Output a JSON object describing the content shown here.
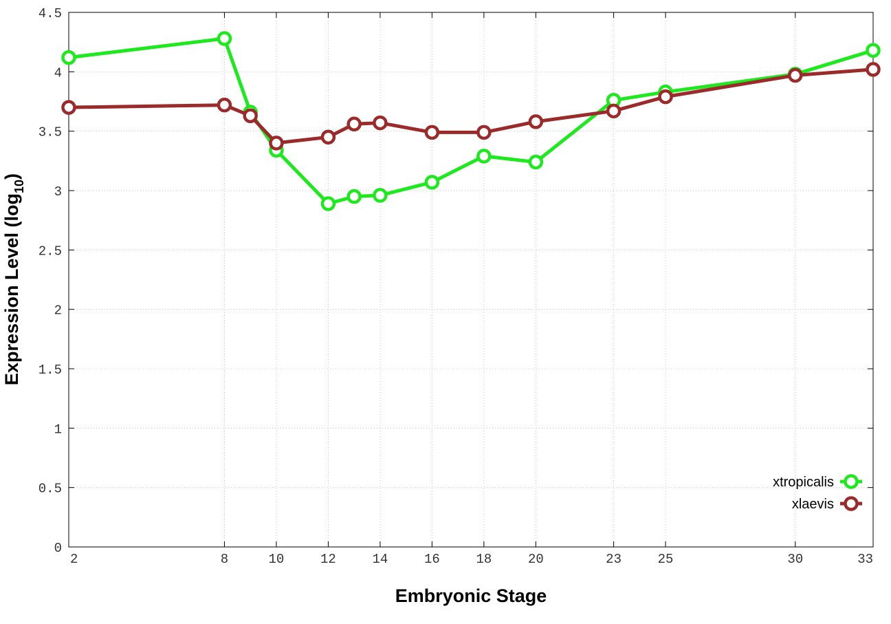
{
  "chart_data": {
    "type": "line",
    "xlabel": "Embryonic Stage",
    "ylabel_main": "Expression Level (log",
    "ylabel_sub": "10",
    "ylabel_close": ")",
    "xlim": [
      2,
      33
    ],
    "ylim": [
      0,
      4.5
    ],
    "x_ticks": [
      2,
      8,
      10,
      12,
      14,
      16,
      18,
      20,
      23,
      25,
      30,
      33
    ],
    "y_ticks": [
      0,
      0.5,
      1,
      1.5,
      2,
      2.5,
      3,
      3.5,
      4,
      4.5
    ],
    "y_tick_labels": [
      "0",
      "0.5",
      "1",
      "1.5",
      "2",
      "2.5",
      "3",
      "3.5",
      "4",
      "4.5"
    ],
    "grid": true,
    "legend_position": "bottom-right",
    "series": [
      {
        "name": "xtropicalis",
        "color": "#1ee81e",
        "x": [
          2,
          8,
          9,
          10,
          12,
          13,
          14,
          16,
          18,
          20,
          23,
          25,
          30,
          33
        ],
        "y": [
          4.12,
          4.28,
          3.66,
          3.34,
          2.89,
          2.95,
          2.96,
          3.07,
          3.29,
          3.24,
          3.76,
          3.83,
          3.98,
          4.18
        ]
      },
      {
        "name": "xlaevis",
        "color": "#9b2a2a",
        "x": [
          2,
          8,
          9,
          10,
          12,
          13,
          14,
          16,
          18,
          20,
          23,
          25,
          30,
          33
        ],
        "y": [
          3.7,
          3.72,
          3.63,
          3.4,
          3.45,
          3.56,
          3.57,
          3.49,
          3.49,
          3.58,
          3.67,
          3.79,
          3.97,
          4.02
        ]
      }
    ]
  }
}
